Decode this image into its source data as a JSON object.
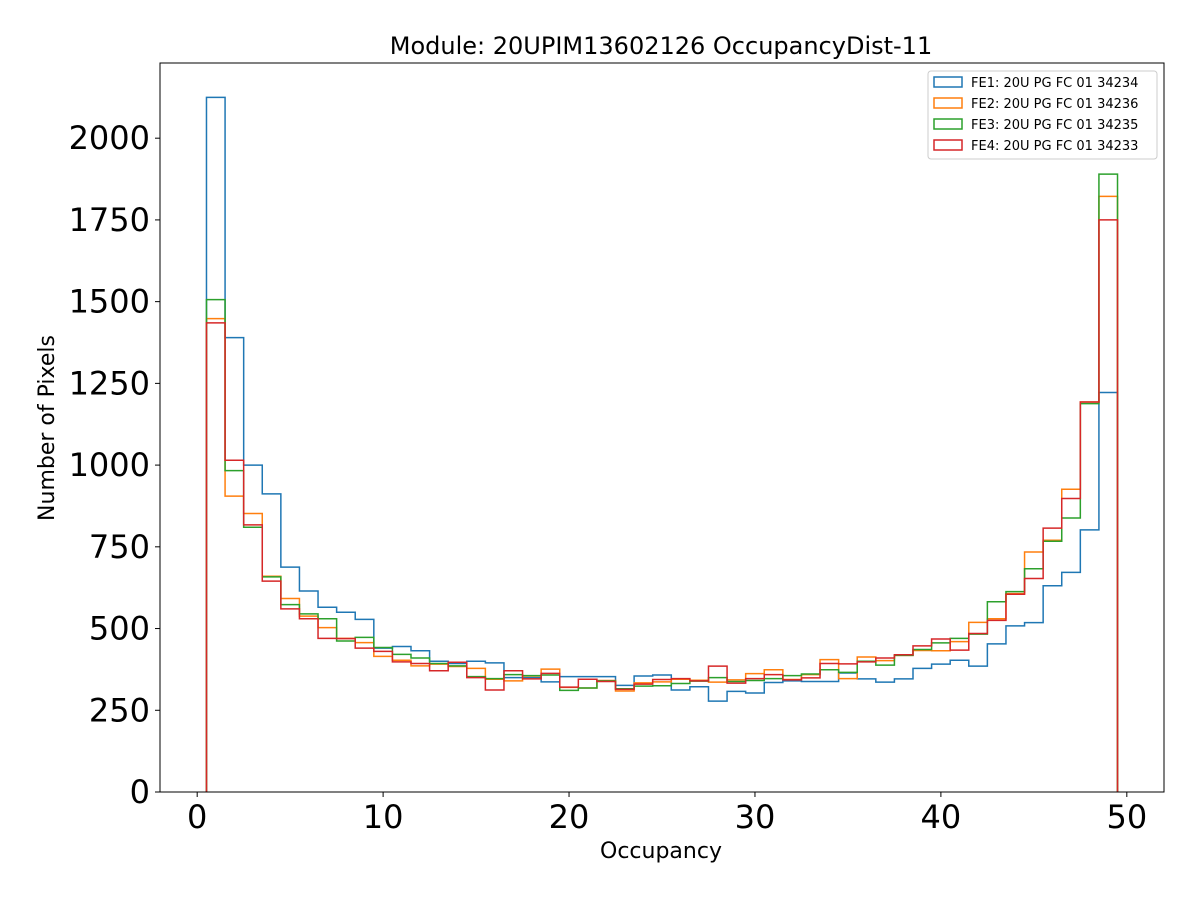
{
  "chart_data": {
    "type": "histogram-step",
    "title": "Module: 20UPIM13602126 OccupancyDist-11",
    "xlabel": "Occupancy",
    "ylabel": "Number of Pixels",
    "xlim": [
      -2,
      52
    ],
    "ylim": [
      0,
      2230
    ],
    "xticks": [
      0,
      10,
      20,
      30,
      40,
      50
    ],
    "yticks": [
      0,
      250,
      500,
      750,
      1000,
      1250,
      1500,
      1750,
      2000
    ],
    "bin_edges_start": 0.5,
    "bin_width": 1,
    "legend_location": "top-right",
    "series": [
      {
        "name": "FE1: 20U PG FC 01 34234",
        "color": "#1f77b4",
        "values": [
          2125,
          1390,
          1000,
          912,
          688,
          615,
          565,
          550,
          528,
          440,
          445,
          432,
          400,
          393,
          400,
          395,
          350,
          350,
          337,
          353,
          353,
          353,
          326,
          355,
          358,
          312,
          322,
          278,
          308,
          303,
          335,
          340,
          338,
          338,
          364,
          346,
          336,
          346,
          378,
          391,
          403,
          385,
          453,
          508,
          518,
          631,
          672,
          802,
          1222
        ]
      },
      {
        "name": "FE2: 20U PG FC 01 34236",
        "color": "#ff7f0e",
        "values": [
          1448,
          905,
          852,
          660,
          592,
          538,
          503,
          470,
          457,
          415,
          403,
          386,
          391,
          384,
          378,
          345,
          340,
          355,
          376,
          320,
          318,
          341,
          309,
          334,
          337,
          345,
          342,
          336,
          343,
          362,
          374,
          344,
          359,
          405,
          347,
          413,
          402,
          418,
          433,
          432,
          460,
          519,
          530,
          607,
          734,
          770,
          926,
          1193,
          1822
        ]
      },
      {
        "name": "FE3: 20U PG FC 01 34235",
        "color": "#2ca02c",
        "values": [
          1506,
          983,
          810,
          658,
          573,
          545,
          530,
          462,
          473,
          442,
          421,
          410,
          393,
          386,
          353,
          347,
          359,
          356,
          358,
          311,
          318,
          340,
          316,
          324,
          325,
          332,
          339,
          350,
          338,
          341,
          347,
          356,
          361,
          374,
          366,
          400,
          388,
          418,
          436,
          456,
          470,
          483,
          582,
          613,
          683,
          767,
          838,
          1188,
          1890
        ]
      },
      {
        "name": "FE4: 20U PG FC 01 34233",
        "color": "#d62728",
        "values": [
          1435,
          1015,
          817,
          645,
          560,
          530,
          470,
          469,
          440,
          430,
          398,
          393,
          371,
          397,
          350,
          312,
          371,
          346,
          363,
          321,
          345,
          338,
          314,
          330,
          344,
          347,
          340,
          385,
          333,
          347,
          359,
          343,
          349,
          393,
          392,
          398,
          410,
          420,
          447,
          468,
          434,
          485,
          525,
          605,
          653,
          807,
          898,
          1193,
          1750
        ]
      }
    ]
  }
}
